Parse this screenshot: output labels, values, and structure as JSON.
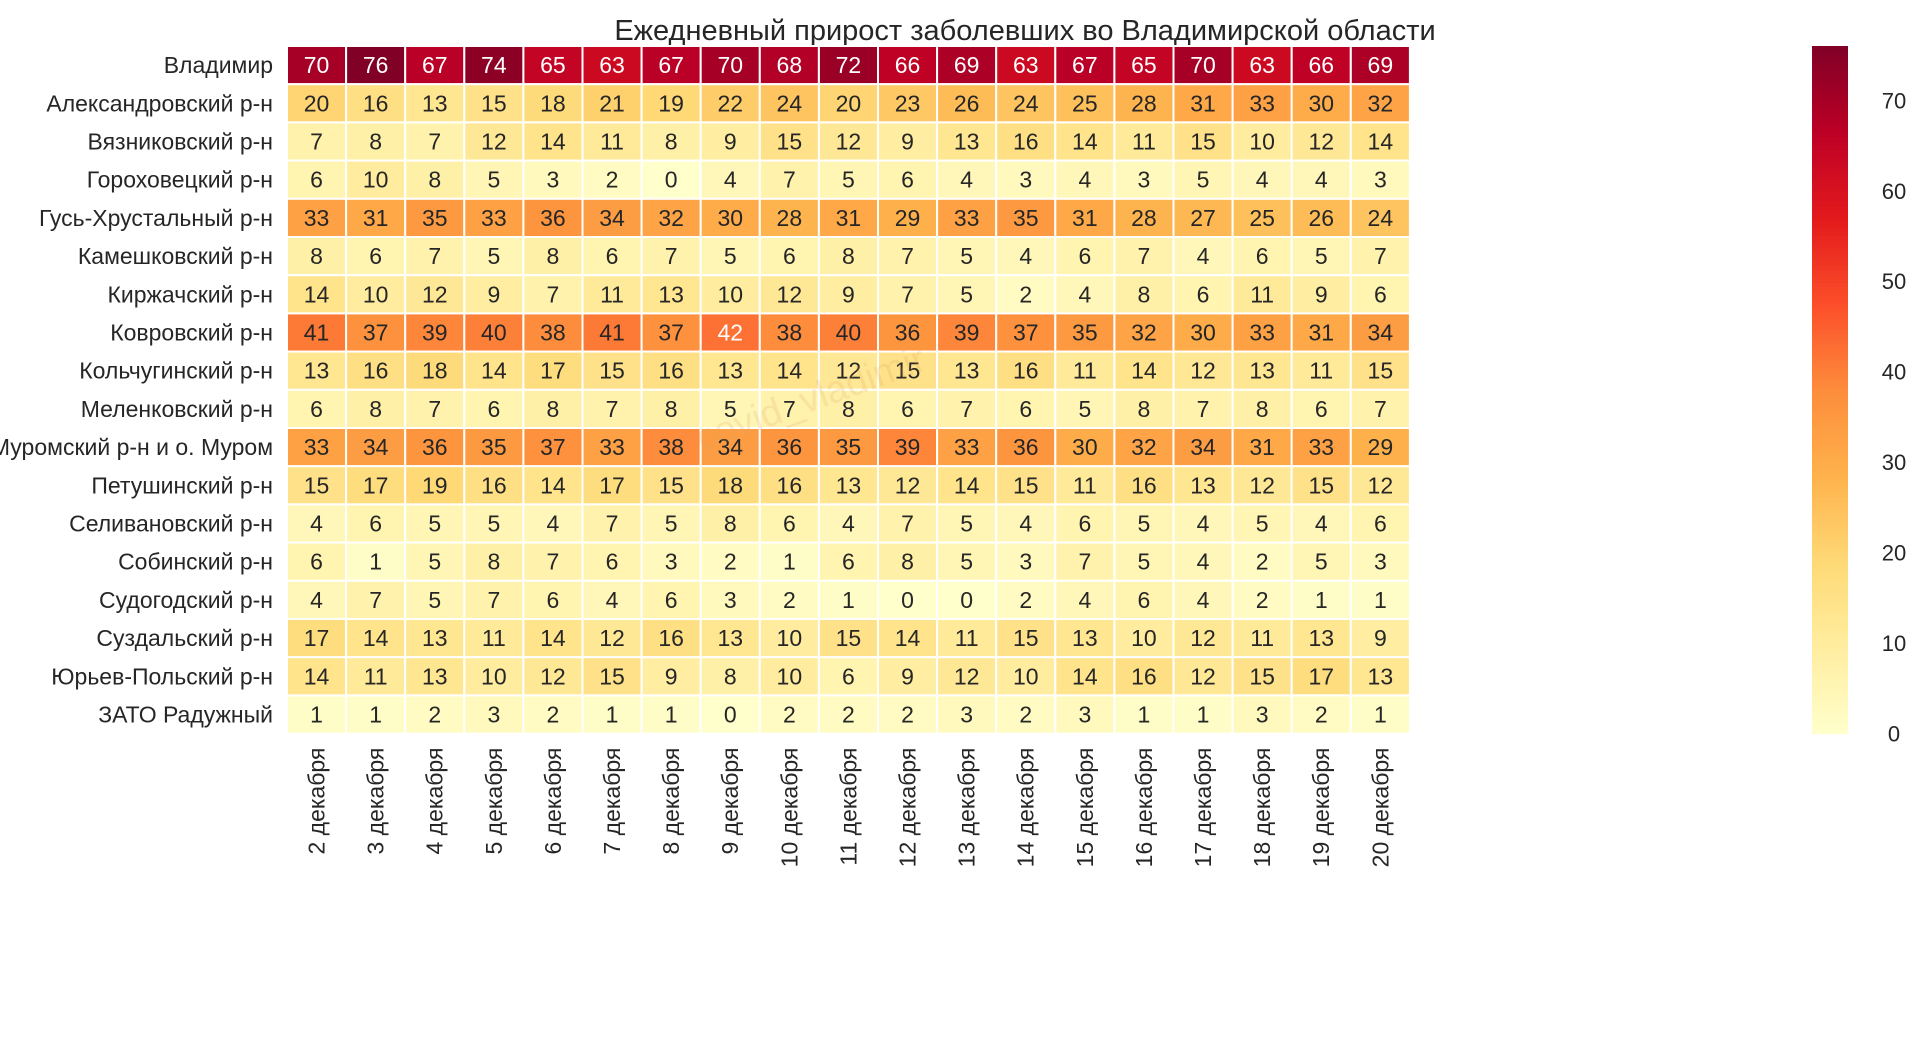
{
  "chart_data": {
    "type": "heatmap",
    "title": "Ежедневный прирост заболевших во Владимирской области",
    "watermark": "covid_vladimir",
    "rows": [
      "Владимир",
      "Александровский р-н",
      "Вязниковский р-н",
      "Гороховецкий р-н",
      "Гусь-Хрустальный р-н",
      "Камешковский р-н",
      "Киржачский р-н",
      "Ковровский р-н",
      "Кольчугинский р-н",
      "Меленковский р-н",
      "Муромский р-н и о. Муром",
      "Петушинский р-н",
      "Селивановский р-н",
      "Собинский р-н",
      "Судогодский р-н",
      "Суздальский р-н",
      "Юрьев-Польский р-н",
      "ЗАТО Радужный"
    ],
    "columns": [
      "2 декабря",
      "3 декабря",
      "4 декабря",
      "5 декабря",
      "6 декабря",
      "7 декабря",
      "8 декабря",
      "9 декабря",
      "10 декабря",
      "11 декабря",
      "12 декабря",
      "13 декабря",
      "14 декабря",
      "15 декабря",
      "16 декабря",
      "17 декабря",
      "18 декабря",
      "19 декабря",
      "20 декабря"
    ],
    "values": [
      [
        70,
        76,
        67,
        74,
        65,
        63,
        67,
        70,
        68,
        72,
        66,
        69,
        63,
        67,
        65,
        70,
        63,
        66,
        69
      ],
      [
        20,
        16,
        13,
        15,
        18,
        21,
        19,
        22,
        24,
        20,
        23,
        26,
        24,
        25,
        28,
        31,
        33,
        30,
        32
      ],
      [
        7,
        8,
        7,
        12,
        14,
        11,
        8,
        9,
        15,
        12,
        9,
        13,
        16,
        14,
        11,
        15,
        10,
        12,
        14
      ],
      [
        6,
        10,
        8,
        5,
        3,
        2,
        0,
        4,
        7,
        5,
        6,
        4,
        3,
        4,
        3,
        5,
        4,
        4,
        3
      ],
      [
        33,
        31,
        35,
        33,
        36,
        34,
        32,
        30,
        28,
        31,
        29,
        33,
        35,
        31,
        28,
        27,
        25,
        26,
        24
      ],
      [
        8,
        6,
        7,
        5,
        8,
        6,
        7,
        5,
        6,
        8,
        7,
        5,
        4,
        6,
        7,
        4,
        6,
        5,
        7
      ],
      [
        14,
        10,
        12,
        9,
        7,
        11,
        13,
        10,
        12,
        9,
        7,
        5,
        2,
        4,
        8,
        6,
        11,
        9,
        6
      ],
      [
        41,
        37,
        39,
        40,
        38,
        41,
        37,
        42,
        38,
        40,
        36,
        39,
        37,
        35,
        32,
        30,
        33,
        31,
        34
      ],
      [
        13,
        16,
        18,
        14,
        17,
        15,
        16,
        13,
        14,
        12,
        15,
        13,
        16,
        11,
        14,
        12,
        13,
        11,
        15
      ],
      [
        6,
        8,
        7,
        6,
        8,
        7,
        8,
        5,
        7,
        8,
        6,
        7,
        6,
        5,
        8,
        7,
        8,
        6,
        7
      ],
      [
        33,
        34,
        36,
        35,
        37,
        33,
        38,
        34,
        36,
        35,
        39,
        33,
        36,
        30,
        32,
        34,
        31,
        33,
        29
      ],
      [
        15,
        17,
        19,
        16,
        14,
        17,
        15,
        18,
        16,
        13,
        12,
        14,
        15,
        11,
        16,
        13,
        12,
        15,
        12
      ],
      [
        4,
        6,
        5,
        5,
        4,
        7,
        5,
        8,
        6,
        4,
        7,
        5,
        4,
        6,
        5,
        4,
        5,
        4,
        6
      ],
      [
        6,
        1,
        5,
        8,
        7,
        6,
        3,
        2,
        1,
        6,
        8,
        5,
        3,
        7,
        5,
        4,
        2,
        5,
        3
      ],
      [
        4,
        7,
        5,
        7,
        6,
        4,
        6,
        3,
        2,
        1,
        0,
        0,
        2,
        4,
        6,
        4,
        2,
        1,
        1
      ],
      [
        17,
        14,
        13,
        11,
        14,
        12,
        16,
        13,
        10,
        15,
        14,
        11,
        15,
        13,
        10,
        12,
        11,
        13,
        9
      ],
      [
        14,
        11,
        13,
        10,
        12,
        15,
        9,
        8,
        10,
        6,
        9,
        12,
        10,
        14,
        16,
        12,
        15,
        17,
        13
      ],
      [
        1,
        1,
        2,
        3,
        2,
        1,
        1,
        0,
        2,
        2,
        2,
        3,
        2,
        3,
        1,
        1,
        3,
        2,
        1
      ]
    ],
    "colormap": "YlOrRd",
    "colorbar": {
      "range": [
        0,
        76
      ],
      "ticks": [
        0,
        10,
        20,
        30,
        40,
        50,
        60,
        70
      ]
    },
    "annotations": true
  }
}
